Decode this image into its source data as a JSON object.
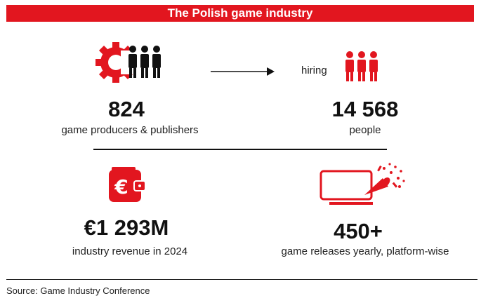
{
  "header": {
    "title": "The Polish game industry"
  },
  "stats": {
    "producers": {
      "value": "824",
      "label": "game producers & publishers"
    },
    "hiring": {
      "connector": "hiring"
    },
    "people": {
      "value": "14 568",
      "label": "people"
    },
    "revenue": {
      "value": "€1 293M",
      "label": "industry revenue in 2024"
    },
    "releases": {
      "value": "450+",
      "label": "game releases yearly, platform-wise"
    }
  },
  "footer": {
    "source": "Source: Game Industry Conference"
  },
  "colors": {
    "accent": "#e2161f",
    "text": "#111111"
  },
  "icons": [
    "gear-icon",
    "people-group-icon",
    "arrow-right-icon",
    "people-group-red-icon",
    "euro-wallet-icon",
    "party-popper-screen-icon"
  ]
}
